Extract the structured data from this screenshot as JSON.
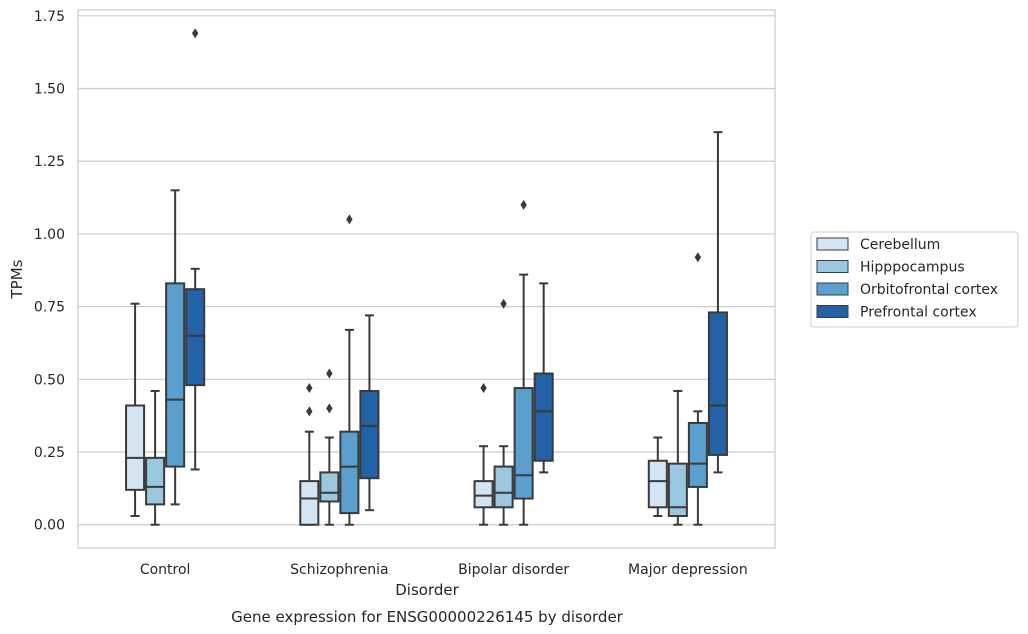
{
  "chart_data": {
    "type": "box",
    "title": "Gene expression for ENSG00000226145 by disorder",
    "xlabel": "Disorder",
    "ylabel": "TPMs",
    "ylim": [
      -0.08,
      1.77
    ],
    "yticks": [
      0.0,
      0.25,
      0.5,
      0.75,
      1.0,
      1.25,
      1.5,
      1.75
    ],
    "ytick_labels": [
      "0.00",
      "0.25",
      "0.50",
      "0.75",
      "1.00",
      "1.25",
      "1.50",
      "1.75"
    ],
    "grid": "horizontal",
    "legend_position": "right",
    "categories": [
      "Control",
      "Schizophrenia",
      "Bipolar disorder",
      "Major depression"
    ],
    "series": [
      {
        "name": "Cerebellum",
        "color": "#d3e4f3",
        "boxes": [
          {
            "whislo": 0.03,
            "q1": 0.12,
            "med": 0.23,
            "q3": 0.41,
            "whishi": 0.76,
            "fliers": []
          },
          {
            "whislo": 0.0,
            "q1": 0.0,
            "med": 0.09,
            "q3": 0.15,
            "whishi": 0.32,
            "fliers": [
              0.39,
              0.47
            ]
          },
          {
            "whislo": 0.0,
            "q1": 0.06,
            "med": 0.1,
            "q3": 0.15,
            "whishi": 0.27,
            "fliers": [
              0.47
            ]
          },
          {
            "whislo": 0.03,
            "q1": 0.06,
            "med": 0.15,
            "q3": 0.22,
            "whishi": 0.3,
            "fliers": []
          }
        ]
      },
      {
        "name": "Hipppocampus",
        "color": "#9ac8e0",
        "boxes": [
          {
            "whislo": 0.0,
            "q1": 0.07,
            "med": 0.13,
            "q3": 0.23,
            "whishi": 0.46,
            "fliers": []
          },
          {
            "whislo": 0.0,
            "q1": 0.08,
            "med": 0.11,
            "q3": 0.18,
            "whishi": 0.3,
            "fliers": [
              0.4,
              0.52
            ]
          },
          {
            "whislo": 0.0,
            "q1": 0.06,
            "med": 0.11,
            "q3": 0.2,
            "whishi": 0.27,
            "fliers": [
              0.76
            ]
          },
          {
            "whislo": 0.0,
            "q1": 0.03,
            "med": 0.06,
            "q3": 0.21,
            "whishi": 0.46,
            "fliers": []
          }
        ]
      },
      {
        "name": "Orbitofrontal cortex",
        "color": "#5a9fcd",
        "boxes": [
          {
            "whislo": 0.07,
            "q1": 0.2,
            "med": 0.43,
            "q3": 0.83,
            "whishi": 1.15,
            "fliers": []
          },
          {
            "whislo": 0.0,
            "q1": 0.04,
            "med": 0.2,
            "q3": 0.32,
            "whishi": 0.67,
            "fliers": [
              1.05
            ]
          },
          {
            "whislo": 0.0,
            "q1": 0.09,
            "med": 0.17,
            "q3": 0.47,
            "whishi": 0.86,
            "fliers": [
              1.1
            ]
          },
          {
            "whislo": 0.0,
            "q1": 0.13,
            "med": 0.21,
            "q3": 0.35,
            "whishi": 0.39,
            "fliers": [
              0.92
            ]
          }
        ]
      },
      {
        "name": "Prefrontal cortex",
        "color": "#2462a8",
        "boxes": [
          {
            "whislo": 0.19,
            "q1": 0.48,
            "med": 0.65,
            "q3": 0.81,
            "whishi": 0.88,
            "fliers": [
              1.69
            ]
          },
          {
            "whislo": 0.05,
            "q1": 0.16,
            "med": 0.34,
            "q3": 0.46,
            "whishi": 0.72,
            "fliers": []
          },
          {
            "whislo": 0.18,
            "q1": 0.22,
            "med": 0.39,
            "q3": 0.52,
            "whishi": 0.83,
            "fliers": []
          },
          {
            "whislo": 0.18,
            "q1": 0.24,
            "med": 0.41,
            "q3": 0.73,
            "whishi": 1.35,
            "fliers": []
          }
        ]
      }
    ]
  }
}
